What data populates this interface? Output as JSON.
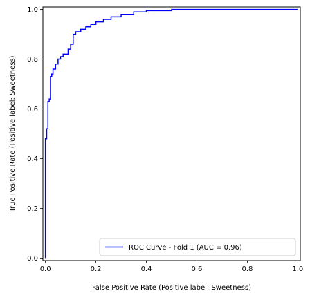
{
  "chart_data": {
    "type": "line",
    "xlabel": "False Positive Rate (Positive label: Sweetness)",
    "ylabel": "True Positive Rate (Positive label: Sweetness)",
    "xlim": [
      -0.01,
      1.01
    ],
    "ylim": [
      -0.01,
      1.01
    ],
    "xticks": [
      "0.0",
      "0.2",
      "0.4",
      "0.6",
      "0.8",
      "1.0"
    ],
    "yticks": [
      "0.0",
      "0.2",
      "0.4",
      "0.6",
      "0.8",
      "1.0"
    ],
    "grid": false,
    "legend_position": "lower-right",
    "series": [
      {
        "name": "ROC Curve - Fold 1 (AUC = 0.96)",
        "color": "#0000ff",
        "x": [
          0.0,
          0.0,
          0.005,
          0.005,
          0.01,
          0.01,
          0.015,
          0.015,
          0.02,
          0.02,
          0.025,
          0.025,
          0.03,
          0.03,
          0.04,
          0.04,
          0.05,
          0.05,
          0.06,
          0.06,
          0.07,
          0.07,
          0.09,
          0.09,
          0.1,
          0.1,
          0.11,
          0.11,
          0.12,
          0.12,
          0.14,
          0.14,
          0.16,
          0.16,
          0.18,
          0.18,
          0.2,
          0.2,
          0.23,
          0.23,
          0.26,
          0.26,
          0.3,
          0.3,
          0.35,
          0.35,
          0.4,
          0.4,
          0.5,
          0.5,
          1.0
        ],
        "y": [
          0.0,
          0.48,
          0.48,
          0.52,
          0.52,
          0.63,
          0.63,
          0.64,
          0.64,
          0.73,
          0.73,
          0.74,
          0.74,
          0.76,
          0.76,
          0.78,
          0.78,
          0.8,
          0.8,
          0.81,
          0.81,
          0.82,
          0.82,
          0.84,
          0.84,
          0.86,
          0.86,
          0.9,
          0.9,
          0.91,
          0.91,
          0.92,
          0.92,
          0.93,
          0.93,
          0.94,
          0.94,
          0.95,
          0.95,
          0.96,
          0.96,
          0.97,
          0.97,
          0.98,
          0.98,
          0.99,
          0.99,
          0.995,
          0.995,
          1.0,
          1.0
        ]
      }
    ]
  }
}
